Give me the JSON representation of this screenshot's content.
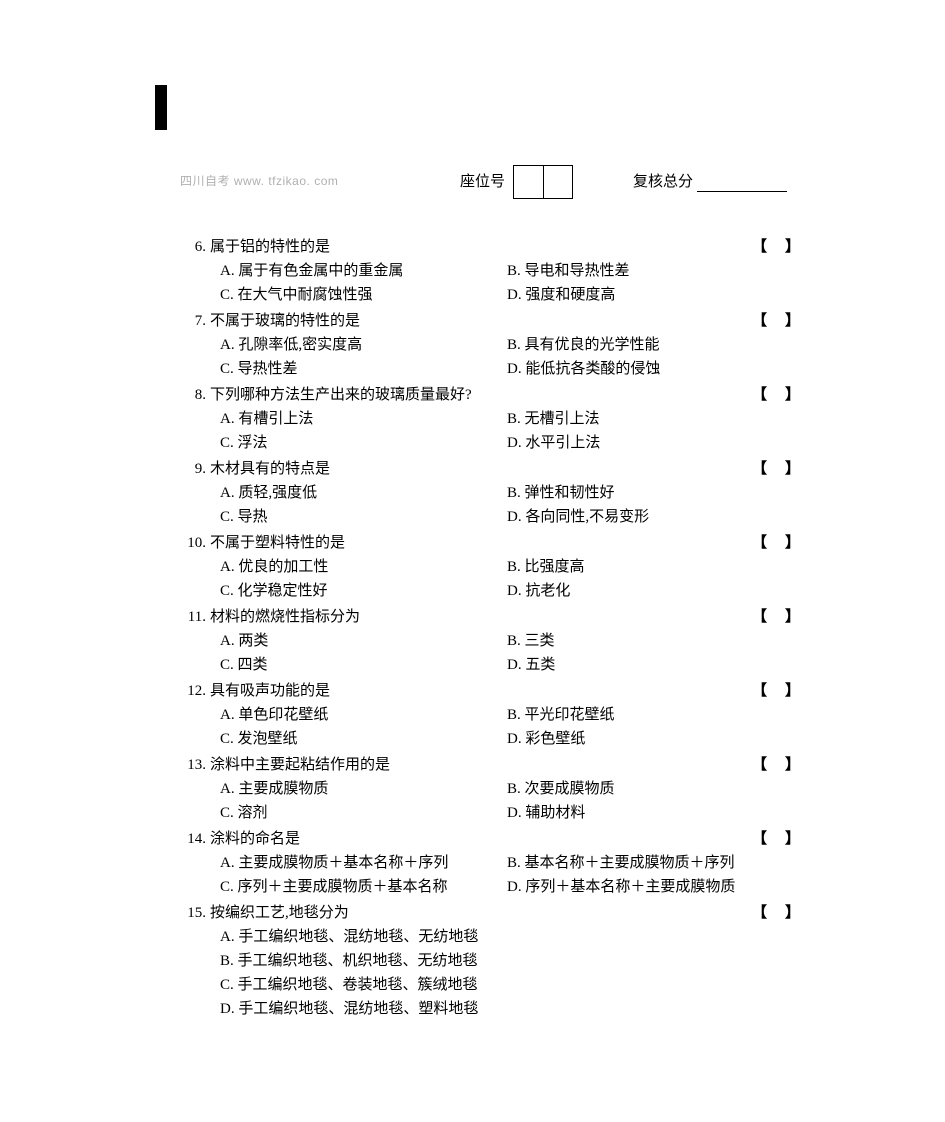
{
  "watermark": "四川自考  www. tfzikao. com",
  "header": {
    "seat_label": "座位号",
    "review_label": "复核总分"
  },
  "bracket_text": "【】",
  "questions": [
    {
      "num": "6.",
      "stem": "属于铝的特性的是",
      "layout": "2col",
      "opts": {
        "A": "A. 属于有色金属中的重金属",
        "B": "B. 导电和导热性差",
        "C": "C. 在大气中耐腐蚀性强",
        "D": "D. 强度和硬度高"
      }
    },
    {
      "num": "7.",
      "stem": "不属于玻璃的特性的是",
      "layout": "2col",
      "opts": {
        "A": "A. 孔隙率低,密实度高",
        "B": "B. 具有优良的光学性能",
        "C": "C. 导热性差",
        "D": "D. 能低抗各类酸的侵蚀"
      }
    },
    {
      "num": "8.",
      "stem": "下列哪种方法生产出来的玻璃质量最好?",
      "layout": "2col",
      "opts": {
        "A": "A. 有槽引上法",
        "B": "B. 无槽引上法",
        "C": "C. 浮法",
        "D": "D. 水平引上法"
      }
    },
    {
      "num": "9.",
      "stem": "木材具有的特点是",
      "layout": "2col",
      "opts": {
        "A": "A. 质轻,强度低",
        "B": "B. 弹性和韧性好",
        "C": "C. 导热",
        "D": "D. 各向同性,不易变形"
      }
    },
    {
      "num": "10.",
      "stem": "不属于塑料特性的是",
      "layout": "2col",
      "opts": {
        "A": "A. 优良的加工性",
        "B": "B. 比强度高",
        "C": "C. 化学稳定性好",
        "D": "D. 抗老化"
      }
    },
    {
      "num": "11.",
      "stem": "材料的燃烧性指标分为",
      "layout": "2col",
      "opts": {
        "A": "A. 两类",
        "B": "B. 三类",
        "C": "C. 四类",
        "D": "D. 五类"
      }
    },
    {
      "num": "12.",
      "stem": "具有吸声功能的是",
      "layout": "2col",
      "opts": {
        "A": "A. 单色印花壁纸",
        "B": "B. 平光印花壁纸",
        "C": "C. 发泡壁纸",
        "D": "D. 彩色壁纸"
      }
    },
    {
      "num": "13.",
      "stem": "涂料中主要起粘结作用的是",
      "layout": "2col",
      "opts": {
        "A": "A. 主要成膜物质",
        "B": "B. 次要成膜物质",
        "C": "C. 溶剂",
        "D": "D. 辅助材料"
      }
    },
    {
      "num": "14.",
      "stem": "涂料的命名是",
      "layout": "2col",
      "opts": {
        "A": "A. 主要成膜物质＋基本名称＋序列",
        "B": "B. 基本名称＋主要成膜物质＋序列",
        "C": "C. 序列＋主要成膜物质＋基本名称",
        "D": "D. 序列＋基本名称＋主要成膜物质"
      }
    },
    {
      "num": "15.",
      "stem": "按编织工艺,地毯分为",
      "layout": "1col",
      "opts": {
        "A": "A. 手工编织地毯、混纺地毯、无纺地毯",
        "B": "B. 手工编织地毯、机织地毯、无纺地毯",
        "C": "C. 手工编织地毯、卷装地毯、簇绒地毯",
        "D": "D. 手工编织地毯、混纺地毯、塑料地毯"
      }
    }
  ]
}
